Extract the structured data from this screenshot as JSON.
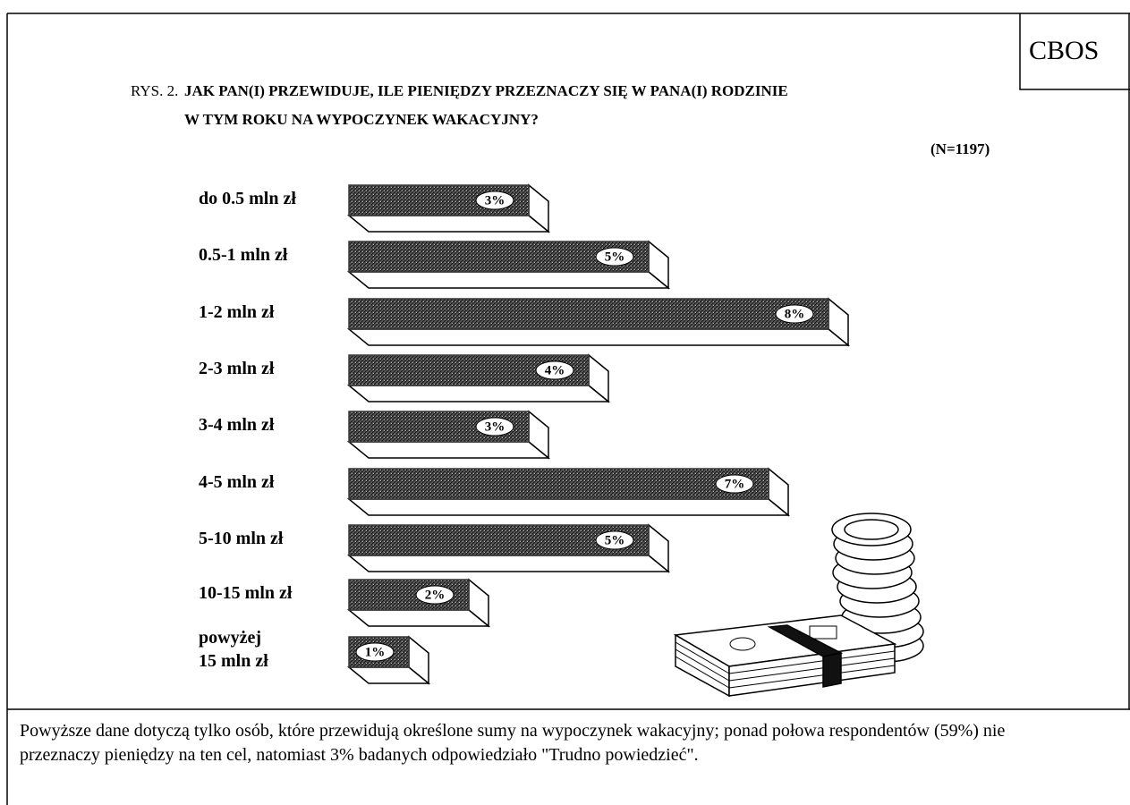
{
  "brand": "CBOS",
  "chart_data": {
    "type": "bar",
    "orientation": "horizontal",
    "figure_label": "RYS. 2.",
    "title": [
      "JAK PAN(I) PRZEWIDUJE, ILE PIENIĘDZY PRZEZNACZY SIĘ W PANA(I) RODZINIE",
      "W TYM ROKU NA WYPOCZYNEK WAKACYJNY?"
    ],
    "note": "(N=1197)",
    "categories": [
      "do 0.5 mln zł",
      "0.5-1 mln zł",
      "1-2 mln zł",
      "2-3 mln zł",
      "3-4 mln zł",
      "4-5 mln zł",
      "5-10 mln zł",
      "10-15 mln zł",
      "powyżej\n15 mln zł"
    ],
    "values": [
      3,
      5,
      8,
      4,
      3,
      7,
      5,
      2,
      1
    ],
    "value_labels": [
      "3%",
      "5%",
      "8%",
      "4%",
      "3%",
      "7%",
      "5%",
      "2%",
      "1%"
    ],
    "color": "#3a3a3a"
  },
  "footnote": "Powyższe dane dotyczą tylko osób, które przewidują określone sumy na wypoczynek wakacyjny;  ponad połowa respondentów (59%) nie przeznaczy pieniędzy na ten cel, natomiast 3% badanych odpowiedziało \"Trudno powiedzieć\"."
}
